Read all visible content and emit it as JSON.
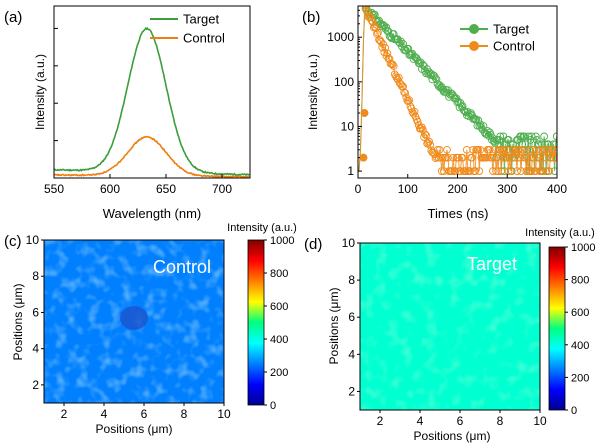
{
  "chart_data": [
    {
      "type": "line",
      "panel_label": "(a)",
      "xlabel": "Wavelength (nm)",
      "ylabel": "Intensity (a.u.)",
      "xlim": [
        550,
        725
      ],
      "ylim": [
        0,
        1.15
      ],
      "x_ticks": [
        "550",
        "600",
        "650",
        "700"
      ],
      "x_tick_values": [
        550,
        600,
        650,
        700
      ],
      "y_tick_labels_shown": false,
      "legend_position": "top-right",
      "series": [
        {
          "name": "Target",
          "color": "#3a9e3a",
          "peak_x": 633,
          "peak_y": 0.96,
          "width": 17,
          "baseline": 0.055
        },
        {
          "name": "Control",
          "color": "#f07d10",
          "peak_x": 633,
          "peak_y": 0.26,
          "width": 17,
          "baseline": 0.02
        }
      ]
    },
    {
      "type": "scatter",
      "panel_label": "(b)",
      "xlabel": "Times (ns)",
      "ylabel": "Intensity (a.u.)",
      "xlim": [
        0,
        400
      ],
      "ylim": [
        0.7,
        5000
      ],
      "y_scale": "log",
      "x_ticks": [
        "0",
        "100",
        "200",
        "300",
        "400"
      ],
      "x_tick_values": [
        0,
        100,
        200,
        300,
        400
      ],
      "y_ticks": [
        "1",
        "10",
        "100",
        "1000"
      ],
      "y_tick_values": [
        1,
        10,
        100,
        1000
      ],
      "legend_position": "top-right",
      "series": [
        {
          "name": "Target",
          "color": "#4fae4f",
          "peak_time": 15,
          "peak_intensity": 4500,
          "decay_tau": 38,
          "noise_floor": 4
        },
        {
          "name": "Control",
          "color": "#f08a1a",
          "peak_time": 15,
          "peak_intensity": 4500,
          "decay_tau": 18,
          "noise_floor": 1.5
        }
      ]
    },
    {
      "type": "heatmap",
      "panel_label": "(c)",
      "annotation": "Control",
      "xlabel": "Positions (μm)",
      "ylabel": "Positions (μm)",
      "xlim": [
        1,
        10
      ],
      "ylim": [
        1,
        10
      ],
      "x_ticks": [
        "2",
        "4",
        "6",
        "8",
        "10"
      ],
      "x_tick_values": [
        2,
        4,
        6,
        8,
        10
      ],
      "y_ticks": [
        "2",
        "4",
        "6",
        "8",
        "10"
      ],
      "y_tick_values": [
        2,
        4,
        6,
        8,
        10
      ],
      "colorbar_title": "Intensity (a.u.)",
      "colorbar_ticks": [
        "0",
        "200",
        "400",
        "600",
        "800",
        "1000"
      ],
      "colorbar_range": [
        0,
        1000
      ],
      "mean_intensity": 250,
      "color_variation": 60
    },
    {
      "type": "heatmap",
      "panel_label": "(d)",
      "annotation": "Target",
      "xlabel": "Positions (μm)",
      "ylabel": "Positions (μm)",
      "xlim": [
        1,
        10
      ],
      "ylim": [
        1,
        10
      ],
      "x_ticks": [
        "2",
        "4",
        "6",
        "8",
        "10"
      ],
      "x_tick_values": [
        2,
        4,
        6,
        8,
        10
      ],
      "y_ticks": [
        "2",
        "4",
        "6",
        "8",
        "10"
      ],
      "y_tick_values": [
        2,
        4,
        6,
        8,
        10
      ],
      "colorbar_title": "Intensity (a.u.)",
      "colorbar_ticks": [
        "0",
        "200",
        "400",
        "600",
        "800",
        "1000"
      ],
      "colorbar_range": [
        0,
        1000
      ],
      "mean_intensity": 420,
      "color_variation": 30
    }
  ]
}
